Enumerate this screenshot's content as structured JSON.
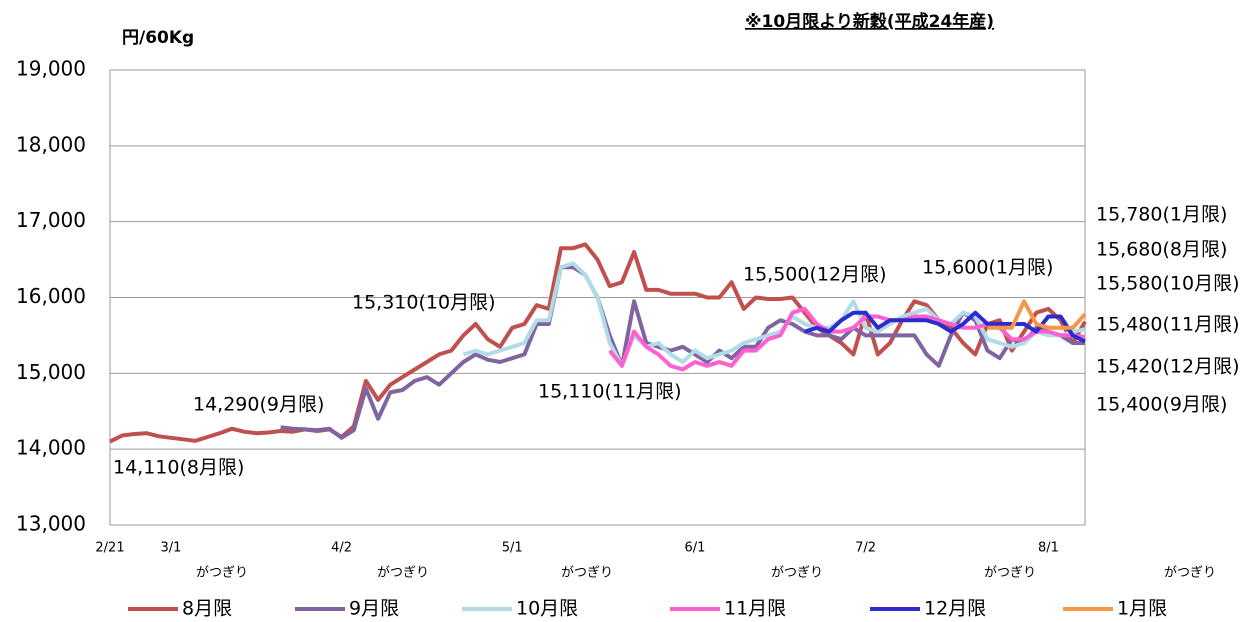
{
  "chart_data": {
    "type": "line",
    "title": "※10月限より新穀(平成24年産)",
    "y_label": "円/60Kg",
    "categories": [
      "2/21",
      null,
      null,
      null,
      null,
      "3/1",
      null,
      null,
      null,
      null,
      null,
      null,
      null,
      null,
      null,
      null,
      null,
      null,
      null,
      "4/2",
      null,
      null,
      null,
      null,
      null,
      null,
      null,
      null,
      null,
      null,
      null,
      null,
      null,
      "5/1",
      null,
      null,
      null,
      null,
      null,
      null,
      null,
      null,
      null,
      null,
      null,
      null,
      null,
      null,
      "6/1",
      null,
      null,
      null,
      null,
      null,
      null,
      null,
      null,
      null,
      null,
      null,
      null,
      null,
      "7/2",
      null,
      null,
      null,
      null,
      null,
      null,
      null,
      null,
      null,
      null,
      null,
      null,
      null,
      null,
      "8/1",
      null,
      null,
      null
    ],
    "ylim": [
      13000,
      19000
    ],
    "yticks": [
      {
        "value": 13000,
        "label": "13,000"
      },
      {
        "value": 14000,
        "label": "14,000"
      },
      {
        "value": 15000,
        "label": "15,000"
      },
      {
        "value": 16000,
        "label": "16,000"
      },
      {
        "value": 17000,
        "label": "17,000"
      },
      {
        "value": 18000,
        "label": "18,000"
      },
      {
        "value": 19000,
        "label": "19,000"
      }
    ],
    "grid": true,
    "series": [
      {
        "name": "8月限",
        "color": "#c0504d",
        "values": [
          14100,
          14180,
          14200,
          14210,
          14170,
          14150,
          14130,
          14110,
          14160,
          14210,
          14270,
          14230,
          14210,
          14220,
          14240,
          14230,
          14260,
          14240,
          14260,
          14160,
          14300,
          14900,
          14650,
          14850,
          14950,
          15050,
          15150,
          15250,
          15300,
          15500,
          15650,
          15450,
          15350,
          15600,
          15650,
          15900,
          15850,
          16650,
          16650,
          16700,
          16500,
          16150,
          16200,
          16600,
          16100,
          16100,
          16050,
          16050,
          16050,
          16000,
          16000,
          16200,
          15850,
          16000,
          15980,
          15980,
          16000,
          15800,
          15600,
          15500,
          15400,
          15250,
          15800,
          15250,
          15400,
          15700,
          15950,
          15900,
          15700,
          15600,
          15400,
          15250,
          15650,
          15700,
          15300,
          15550,
          15800,
          15850,
          15700,
          15400,
          15680
        ]
      },
      {
        "name": "9月限",
        "color": "#8064a2",
        "values": [
          null,
          null,
          null,
          null,
          null,
          null,
          null,
          null,
          null,
          null,
          null,
          null,
          null,
          null,
          14290,
          14270,
          14260,
          14250,
          14270,
          14150,
          14250,
          14800,
          14400,
          14750,
          14780,
          14900,
          14950,
          14850,
          15000,
          15150,
          15250,
          15180,
          15150,
          15200,
          15250,
          15650,
          15650,
          16400,
          16400,
          16300,
          16000,
          15500,
          15100,
          15950,
          15400,
          15350,
          15300,
          15350,
          15250,
          15150,
          15300,
          15200,
          15350,
          15350,
          15600,
          15700,
          15650,
          15550,
          15500,
          15500,
          15450,
          15600,
          15500,
          15500,
          15500,
          15500,
          15500,
          15250,
          15100,
          15500,
          15800,
          15700,
          15300,
          15200,
          15450,
          15400,
          15600,
          15550,
          15500,
          15400,
          15400
        ]
      },
      {
        "name": "10月限",
        "color": "#b2dbe8",
        "values": [
          null,
          null,
          null,
          null,
          null,
          null,
          null,
          null,
          null,
          null,
          null,
          null,
          null,
          null,
          null,
          null,
          null,
          null,
          null,
          null,
          null,
          null,
          null,
          null,
          null,
          null,
          null,
          null,
          null,
          15250,
          15300,
          15250,
          15300,
          15350,
          15400,
          15700,
          15700,
          16400,
          16450,
          16300,
          16000,
          15400,
          15100,
          15500,
          15350,
          15400,
          15250,
          15150,
          15300,
          15200,
          15250,
          15300,
          15400,
          15450,
          15500,
          15550,
          15750,
          15650,
          15600,
          15600,
          15700,
          15950,
          15600,
          15550,
          15650,
          15750,
          15800,
          15850,
          15700,
          15650,
          15800,
          15750,
          15450,
          15400,
          15350,
          15400,
          15550,
          15500,
          15500,
          15550,
          15580
        ]
      },
      {
        "name": "11月限",
        "color": "#ff5fd0",
        "values": [
          null,
          null,
          null,
          null,
          null,
          null,
          null,
          null,
          null,
          null,
          null,
          null,
          null,
          null,
          null,
          null,
          null,
          null,
          null,
          null,
          null,
          null,
          null,
          null,
          null,
          null,
          null,
          null,
          null,
          null,
          null,
          null,
          null,
          null,
          null,
          null,
          null,
          null,
          null,
          null,
          null,
          15300,
          15100,
          15550,
          15350,
          15250,
          15100,
          15050,
          15150,
          15100,
          15150,
          15100,
          15300,
          15300,
          15450,
          15500,
          15800,
          15850,
          15650,
          15550,
          15550,
          15600,
          15750,
          15750,
          15700,
          15700,
          15750,
          15750,
          15700,
          15650,
          15600,
          15600,
          15650,
          15600,
          15450,
          15450,
          15550,
          15550,
          15500,
          15500,
          15480
        ]
      },
      {
        "name": "12月限",
        "color": "#2b2bd0",
        "values": [
          null,
          null,
          null,
          null,
          null,
          null,
          null,
          null,
          null,
          null,
          null,
          null,
          null,
          null,
          null,
          null,
          null,
          null,
          null,
          null,
          null,
          null,
          null,
          null,
          null,
          null,
          null,
          null,
          null,
          null,
          null,
          null,
          null,
          null,
          null,
          null,
          null,
          null,
          null,
          null,
          null,
          null,
          null,
          null,
          null,
          null,
          null,
          null,
          null,
          null,
          null,
          null,
          null,
          null,
          null,
          null,
          null,
          15550,
          15600,
          15550,
          15700,
          15800,
          15800,
          15600,
          15700,
          15700,
          15700,
          15700,
          15650,
          15550,
          15650,
          15800,
          15650,
          15650,
          15650,
          15650,
          15550,
          15750,
          15750,
          15500,
          15420
        ]
      },
      {
        "name": "1月限",
        "color": "#f79646",
        "values": [
          null,
          null,
          null,
          null,
          null,
          null,
          null,
          null,
          null,
          null,
          null,
          null,
          null,
          null,
          null,
          null,
          null,
          null,
          null,
          null,
          null,
          null,
          null,
          null,
          null,
          null,
          null,
          null,
          null,
          null,
          null,
          null,
          null,
          null,
          null,
          null,
          null,
          null,
          null,
          null,
          null,
          null,
          null,
          null,
          null,
          null,
          null,
          null,
          null,
          null,
          null,
          null,
          null,
          null,
          null,
          null,
          null,
          null,
          null,
          null,
          null,
          null,
          null,
          null,
          null,
          null,
          null,
          null,
          null,
          null,
          null,
          null,
          15600,
          15600,
          15600,
          15950,
          15650,
          15600,
          15600,
          15600,
          15780
        ]
      }
    ],
    "annotations": [
      "15,310(10月限)",
      "14,290(9月限)",
      "14,110(8月限)",
      "15,110(11月限)",
      "15,500(12月限)",
      "15,600(1月限)"
    ],
    "end_labels": [
      "15,780(1月限)",
      "15,680(8月限)",
      "15,580(10月限)",
      "15,480(11月限)",
      "15,420(12月限)",
      "15,400(9月限)"
    ],
    "notes": [
      "がつぎり",
      "がつぎり",
      "がつぎり",
      "がつぎり",
      "がつぎり",
      "がつぎり"
    ]
  }
}
